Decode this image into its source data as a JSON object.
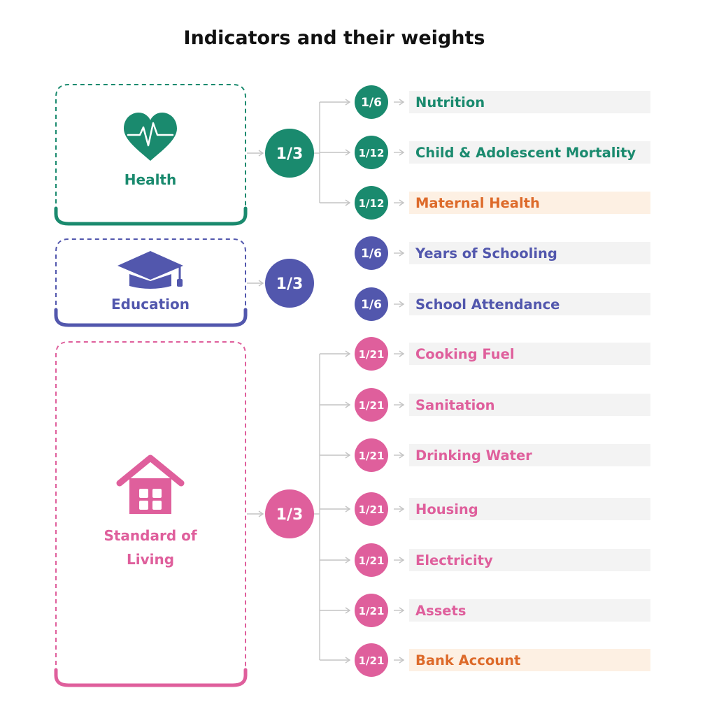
{
  "title": "Indicators and their weights",
  "colors": {
    "health": "#1a8a6e",
    "education": "#5257ad",
    "living": "#df5f9c",
    "highlight_text": "#dd6a2a",
    "highlight_bg": "#fdf0e3",
    "row_bg": "#f3f3f3",
    "connector": "#c4c4c4"
  },
  "dimensions": [
    {
      "key": "health",
      "label_lines": [
        "Health"
      ],
      "icon": "heart-pulse-icon",
      "weight": "1/3",
      "indicators": [
        {
          "name": "Nutrition",
          "weight": "1/6",
          "highlight": false
        },
        {
          "name": "Child & Adolescent Mortality",
          "weight": "1/12",
          "highlight": false
        },
        {
          "name": "Maternal Health",
          "weight": "1/12",
          "highlight": true
        }
      ]
    },
    {
      "key": "education",
      "label_lines": [
        "Education"
      ],
      "icon": "graduation-cap-icon",
      "weight": "1/3",
      "indicators": [
        {
          "name": "Years of Schooling",
          "weight": "1/6",
          "highlight": false
        },
        {
          "name": "School Attendance",
          "weight": "1/6",
          "highlight": false
        }
      ]
    },
    {
      "key": "living",
      "label_lines": [
        "Standard of",
        "Living"
      ],
      "icon": "house-icon",
      "weight": "1/3",
      "indicators": [
        {
          "name": "Cooking Fuel",
          "weight": "1/21",
          "highlight": false
        },
        {
          "name": "Sanitation",
          "weight": "1/21",
          "highlight": false
        },
        {
          "name": "Drinking Water",
          "weight": "1/21",
          "highlight": false
        },
        {
          "name": "Housing",
          "weight": "1/21",
          "highlight": false
        },
        {
          "name": "Electricity",
          "weight": "1/21",
          "highlight": false
        },
        {
          "name": "Assets",
          "weight": "1/21",
          "highlight": false
        },
        {
          "name": "Bank Account",
          "weight": "1/21",
          "highlight": true
        }
      ]
    }
  ]
}
